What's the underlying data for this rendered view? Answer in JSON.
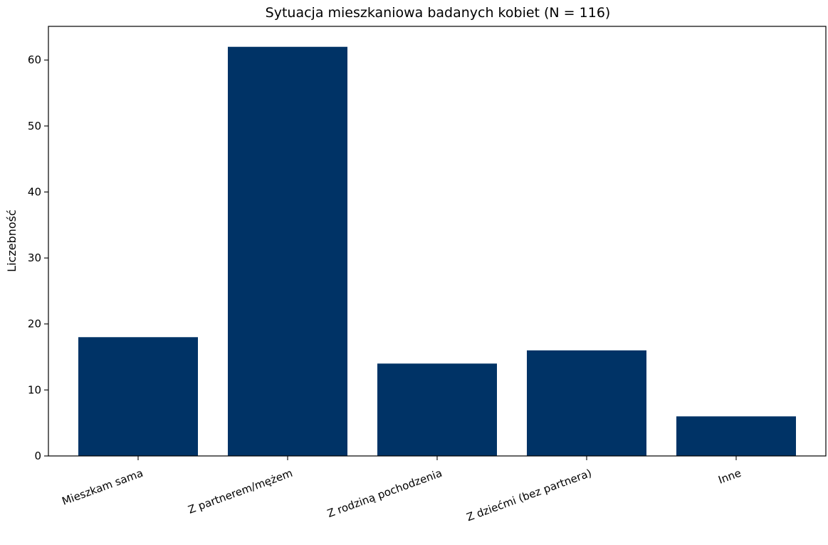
{
  "chart_data": {
    "type": "bar",
    "title": "Sytuacja mieszkaniowa badanych kobiet (N = 116)",
    "xlabel": "",
    "ylabel": "Liczebność",
    "categories": [
      "Mieszkam sama",
      "Z partnerem/mężem",
      "Z rodziną pochodzenia",
      "Z dziećmi (bez partnera)",
      "Inne"
    ],
    "values": [
      18,
      62,
      14,
      16,
      6
    ],
    "ylim": [
      0,
      65.1
    ],
    "yticks": [
      0,
      10,
      20,
      30,
      40,
      50,
      60
    ],
    "bar_color": "#003366",
    "grid": false,
    "legend": "none"
  }
}
